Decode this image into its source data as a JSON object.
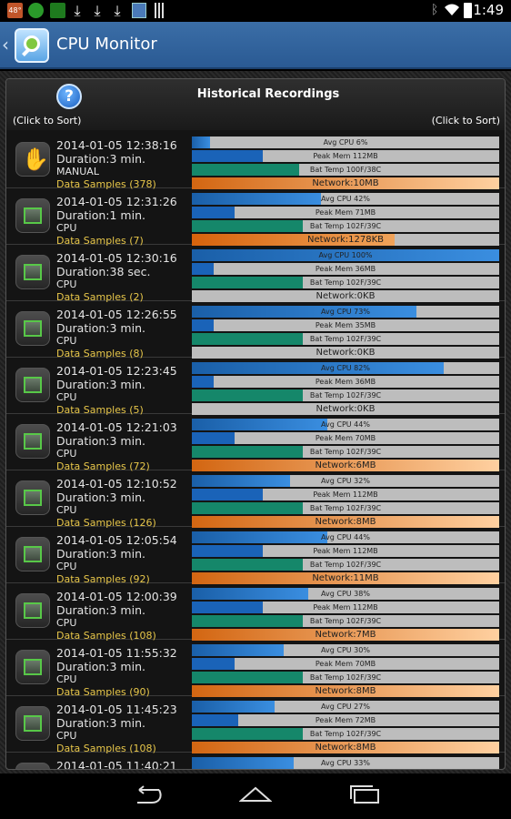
{
  "status_bar": {
    "temp_badge": "48°",
    "time": "1:49",
    "icons": [
      "temp-badge-icon",
      "circle-app-icon",
      "battery-app-icon",
      "download-icon",
      "download-icon",
      "download-icon",
      "screen-icon",
      "barcode-icon",
      "bluetooth-icon",
      "wifi-icon",
      "battery-icon"
    ]
  },
  "action_bar": {
    "title": "CPU Monitor",
    "back_icon": "chevron-left-icon",
    "app_icon": "magnifier-app-icon"
  },
  "header": {
    "title": "Historical Recordings",
    "help_glyph": "?",
    "sort_left": "(Click to Sort)",
    "sort_right": "(Click to Sort)"
  },
  "recordings": [
    {
      "date": "2014-01-05 12:38:16",
      "duration": "Duration:3 min.",
      "type": "MANUAL",
      "samples": "Data Samples (378)",
      "icon": "hand-icon",
      "cpu_label": "Avg CPU 6%",
      "cpu_pct": 6,
      "mem_label": "Peak Mem 112MB",
      "mem_pct": 23,
      "bat_label": "Bat Temp 100F/38C",
      "bat_pct": 35,
      "net_label": "Network:10MB",
      "net_pct": 100
    },
    {
      "date": "2014-01-05 12:31:26",
      "duration": "Duration:1 min.",
      "type": "CPU",
      "samples": "Data Samples (7)",
      "icon": "chip-icon",
      "cpu_label": "Avg CPU 42%",
      "cpu_pct": 42,
      "mem_label": "Peak Mem 71MB",
      "mem_pct": 14,
      "bat_label": "Bat Temp 102F/39C",
      "bat_pct": 36,
      "net_label": "Network:1278KB",
      "net_pct": 66
    },
    {
      "date": "2014-01-05 12:30:16",
      "duration": "Duration:38 sec.",
      "type": "CPU",
      "samples": "Data Samples (2)",
      "icon": "chip-icon",
      "cpu_label": "Avg CPU 100%",
      "cpu_pct": 100,
      "mem_label": "Peak Mem 36MB",
      "mem_pct": 7,
      "bat_label": "Bat Temp 102F/39C",
      "bat_pct": 36,
      "net_label": "Network:0KB",
      "net_pct": 0
    },
    {
      "date": "2014-01-05 12:26:55",
      "duration": "Duration:3 min.",
      "type": "CPU",
      "samples": "Data Samples (8)",
      "icon": "chip-icon",
      "cpu_label": "Avg CPU 73%",
      "cpu_pct": 73,
      "mem_label": "Peak Mem 35MB",
      "mem_pct": 7,
      "bat_label": "Bat Temp 102F/39C",
      "bat_pct": 36,
      "net_label": "Network:0KB",
      "net_pct": 0
    },
    {
      "date": "2014-01-05 12:23:45",
      "duration": "Duration:3 min.",
      "type": "CPU",
      "samples": "Data Samples (5)",
      "icon": "chip-icon",
      "cpu_label": "Avg CPU 82%",
      "cpu_pct": 82,
      "mem_label": "Peak Mem 36MB",
      "mem_pct": 7,
      "bat_label": "Bat Temp 102F/39C",
      "bat_pct": 36,
      "net_label": "Network:0KB",
      "net_pct": 0
    },
    {
      "date": "2014-01-05 12:21:03",
      "duration": "Duration:3 min.",
      "type": "CPU",
      "samples": "Data Samples (72)",
      "icon": "chip-icon",
      "cpu_label": "Avg CPU 44%",
      "cpu_pct": 44,
      "mem_label": "Peak Mem 70MB",
      "mem_pct": 14,
      "bat_label": "Bat Temp 102F/39C",
      "bat_pct": 36,
      "net_label": "Network:6MB",
      "net_pct": 100
    },
    {
      "date": "2014-01-05 12:10:52",
      "duration": "Duration:3 min.",
      "type": "CPU",
      "samples": "Data Samples (126)",
      "icon": "chip-icon",
      "cpu_label": "Avg CPU 32%",
      "cpu_pct": 32,
      "mem_label": "Peak Mem 112MB",
      "mem_pct": 23,
      "bat_label": "Bat Temp 102F/39C",
      "bat_pct": 36,
      "net_label": "Network:8MB",
      "net_pct": 100
    },
    {
      "date": "2014-01-05 12:05:54",
      "duration": "Duration:3 min.",
      "type": "CPU",
      "samples": "Data Samples (92)",
      "icon": "chip-icon",
      "cpu_label": "Avg CPU 44%",
      "cpu_pct": 44,
      "mem_label": "Peak Mem 112MB",
      "mem_pct": 23,
      "bat_label": "Bat Temp 102F/39C",
      "bat_pct": 36,
      "net_label": "Network:11MB",
      "net_pct": 100
    },
    {
      "date": "2014-01-05 12:00:39",
      "duration": "Duration:3 min.",
      "type": "CPU",
      "samples": "Data Samples (108)",
      "icon": "chip-icon",
      "cpu_label": "Avg CPU 38%",
      "cpu_pct": 38,
      "mem_label": "Peak Mem 112MB",
      "mem_pct": 23,
      "bat_label": "Bat Temp 102F/39C",
      "bat_pct": 36,
      "net_label": "Network:7MB",
      "net_pct": 100
    },
    {
      "date": "2014-01-05 11:55:32",
      "duration": "Duration:3 min.",
      "type": "CPU",
      "samples": "Data Samples (90)",
      "icon": "chip-icon",
      "cpu_label": "Avg CPU 30%",
      "cpu_pct": 30,
      "mem_label": "Peak Mem 70MB",
      "mem_pct": 14,
      "bat_label": "Bat Temp 102F/39C",
      "bat_pct": 36,
      "net_label": "Network:8MB",
      "net_pct": 100
    },
    {
      "date": "2014-01-05 11:45:23",
      "duration": "Duration:3 min.",
      "type": "CPU",
      "samples": "Data Samples (108)",
      "icon": "chip-icon",
      "cpu_label": "Avg CPU 27%",
      "cpu_pct": 27,
      "mem_label": "Peak Mem 72MB",
      "mem_pct": 15,
      "bat_label": "Bat Temp 102F/39C",
      "bat_pct": 36,
      "net_label": "Network:8MB",
      "net_pct": 100
    },
    {
      "date": "2014-01-05 11:40:21",
      "duration": "",
      "type": "",
      "samples": "",
      "icon": "chip-icon",
      "cpu_label": "Avg CPU 33%",
      "cpu_pct": 33,
      "mem_label": "",
      "mem_pct": 0,
      "bat_label": "",
      "bat_pct": 0,
      "net_label": "",
      "net_pct": 0
    }
  ],
  "nav_bar": {
    "icons": [
      "back-icon",
      "home-icon",
      "recent-apps-icon"
    ]
  },
  "colors": {
    "action_bar": "#2f629c",
    "cpu_fill": "#2a7ccc",
    "mem_fill": "#1a63b8",
    "bat_fill": "#15876a",
    "net_fill": "#e88a3a",
    "samples_text": "#e8c74a"
  }
}
